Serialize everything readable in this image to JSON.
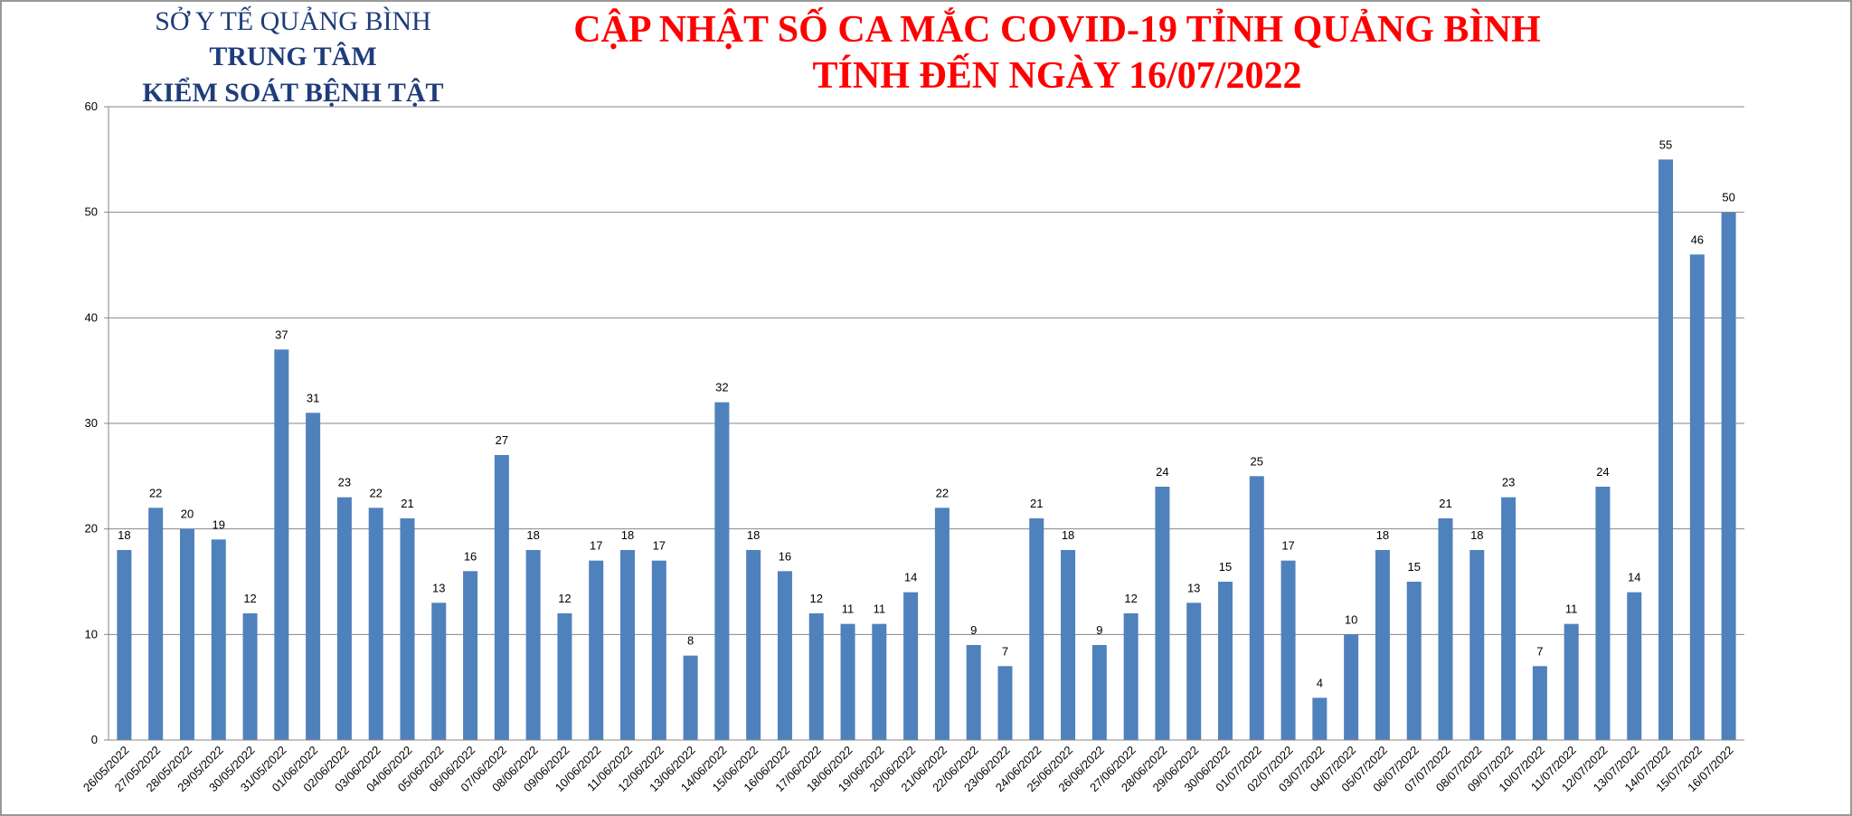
{
  "header": {
    "lines": [
      "SỞ Y TẾ QUẢNG BÌNH",
      "TRUNG TÂM",
      "KIỂM SOÁT BỆNH TẬT"
    ]
  },
  "chart_data": {
    "type": "bar",
    "title": "CẬP NHẬT SỐ CA MẮC COVID-19 TỈNH QUẢNG BÌNH",
    "subtitle": "TÍNH ĐẾN NGÀY 16/07/2022",
    "categories": [
      "26/05/2022",
      "27/05/2022",
      "28/05/2022",
      "29/05/2022",
      "30/05/2022",
      "31/05/2022",
      "01/06/2022",
      "02/06/2022",
      "03/06/2022",
      "04/06/2022",
      "05/06/2022",
      "06/06/2022",
      "07/06/2022",
      "08/06/2022",
      "09/06/2022",
      "10/06/2022",
      "11/06/2022",
      "12/06/2022",
      "13/06/2022",
      "14/06/2022",
      "15/06/2022",
      "16/06/2022",
      "17/06/2022",
      "18/06/2022",
      "19/06/2022",
      "20/06/2022",
      "21/06/2022",
      "22/06/2022",
      "23/06/2022",
      "24/06/2022",
      "25/06/2022",
      "26/06/2022",
      "27/06/2022",
      "28/06/2022",
      "29/06/2022",
      "30/06/2022",
      "01/07/2022",
      "02/07/2022",
      "03/07/2022",
      "04/07/2022",
      "05/07/2022",
      "06/07/2022",
      "07/07/2022",
      "08/07/2022",
      "09/07/2022",
      "10/07/2022",
      "11/07/2022",
      "12/07/2022",
      "13/07/2022",
      "14/07/2022",
      "15/07/2022",
      "16/07/2022"
    ],
    "values": [
      18,
      22,
      20,
      19,
      12,
      37,
      31,
      23,
      22,
      21,
      13,
      16,
      27,
      18,
      12,
      17,
      18,
      17,
      8,
      32,
      18,
      16,
      12,
      11,
      11,
      14,
      22,
      9,
      7,
      21,
      18,
      9,
      12,
      24,
      13,
      15,
      25,
      17,
      4,
      10,
      18,
      15,
      21,
      18,
      23,
      7,
      11,
      24,
      14,
      55,
      46,
      50
    ],
    "color": "#4f81bd",
    "ylim": [
      0,
      60
    ],
    "yticks": [
      0,
      10,
      20,
      30,
      40,
      50,
      60
    ],
    "grid": true
  }
}
